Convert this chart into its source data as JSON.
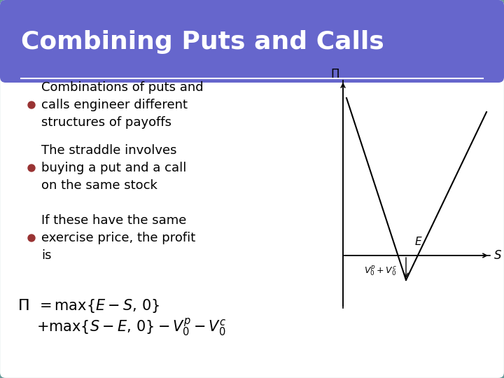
{
  "title": "Combining Puts and Calls",
  "title_bg_color": "#6666cc",
  "slide_bg_color": "#ffffff",
  "outer_border_color": "#669999",
  "bullet_color": "#993333",
  "bullet_points": [
    "Combinations of puts and\ncalls engineer different\nstructures of payoffs",
    "The straddle involves\nbuying a put and a call\non the same stock",
    "If these have the same\nexercise price, the profit\nis"
  ],
  "formula_line1": "= max{E - S, 0}",
  "formula_line2": "+ max{S - E, 0} - V",
  "graph_x_label": "S",
  "graph_y_label": "Π",
  "graph_e_label": "E",
  "graph_v_label": "V_0^p + V_0^c",
  "title_fontsize": 26,
  "bullet_fontsize": 13,
  "formula_fontsize": 14
}
